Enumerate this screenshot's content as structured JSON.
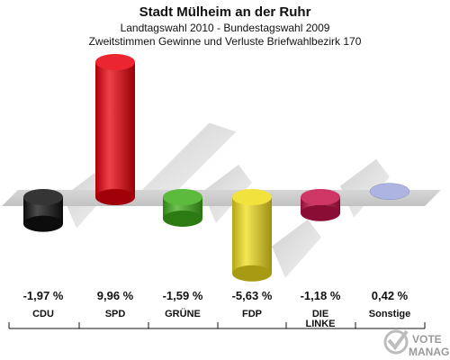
{
  "header": {
    "title": "Stadt Mülheim an der Ruhr",
    "subtitle1": "Landtagswahl 2010 - Bundestagswahl 2009",
    "subtitle2": "Zweitstimmen Gewinne und Verluste Briefwahlbezirk 170"
  },
  "chart_data": {
    "type": "bar",
    "categories": [
      "CDU",
      "SPD",
      "GRÜNE",
      "FDP",
      "DIE LINKE",
      "Sonstige"
    ],
    "values": [
      -1.97,
      9.96,
      -1.59,
      -5.63,
      -1.18,
      0.42
    ],
    "value_labels": [
      "-1,97 %",
      "9,96 %",
      "-1,59 %",
      "-5,63 %",
      "-1,18 %",
      "0,42 %"
    ],
    "colors": [
      "#111111",
      "#e8000b",
      "#3fae1a",
      "#f0dd1c",
      "#c4124a",
      "#a3acdf"
    ],
    "baseline": 0,
    "legend": "none",
    "grid": false
  },
  "logo": {
    "text1": "VOTE",
    "text2": "MANAGER"
  }
}
